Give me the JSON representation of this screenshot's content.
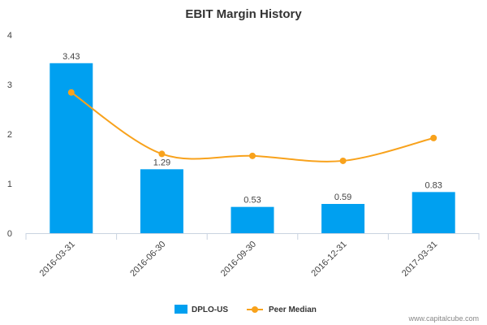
{
  "chart_data": {
    "type": "bar",
    "title": "EBIT Margin History",
    "categories": [
      "2016-03-31",
      "2016-06-30",
      "2016-09-30",
      "2016-12-31",
      "2017-03-31"
    ],
    "series": [
      {
        "name": "DPLO-US",
        "type": "bar",
        "color": "#00a0f0",
        "values": [
          3.43,
          1.29,
          0.53,
          0.59,
          0.83
        ],
        "data_labels": [
          "3.43",
          "1.29",
          "0.53",
          "0.59",
          "0.83"
        ]
      },
      {
        "name": "Peer Median",
        "type": "line",
        "color": "#f8a21c",
        "values": [
          2.84,
          1.6,
          1.56,
          1.46,
          1.92
        ]
      }
    ],
    "ylim": [
      0,
      4
    ],
    "yticks": [
      "0",
      "1",
      "2",
      "3",
      "4"
    ],
    "xlabel": "",
    "ylabel": "",
    "grid": false,
    "legend_position": "bottom"
  },
  "watermark": "www.capitalcube.com"
}
